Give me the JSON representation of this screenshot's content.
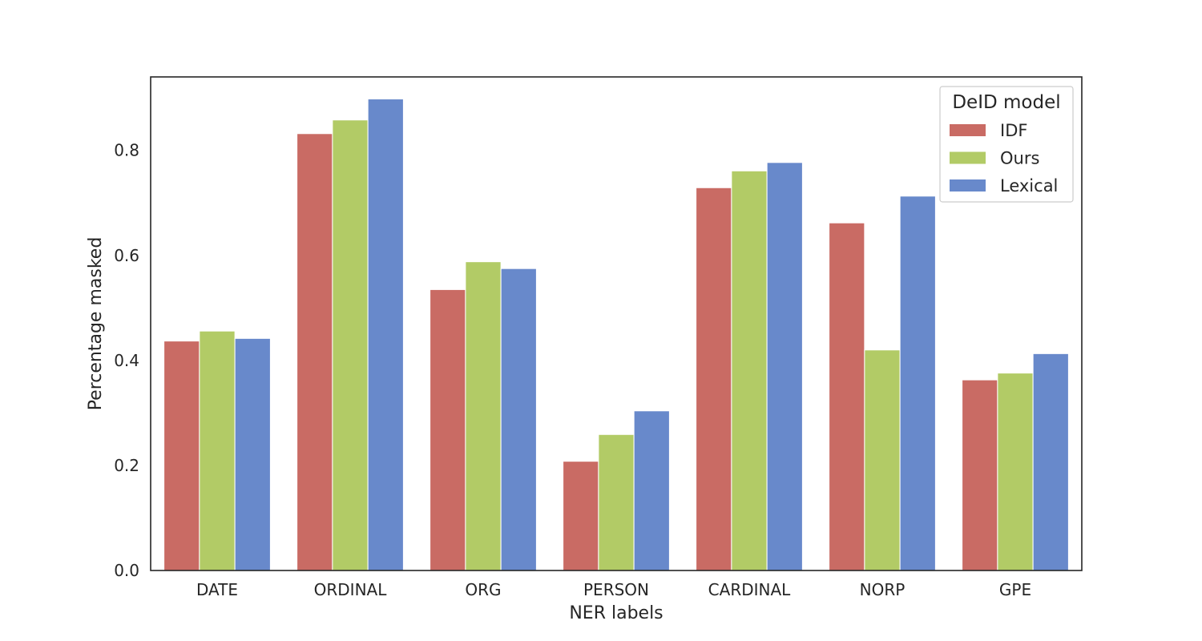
{
  "chart_data": {
    "type": "bar",
    "xlabel": "NER labels",
    "ylabel": "Percentage masked",
    "ylim": [
      0,
      0.94
    ],
    "yticks": [
      "0.0",
      "0.2",
      "0.4",
      "0.6",
      "0.8"
    ],
    "grid": false,
    "legend_placement": "top-right",
    "legend_title": "DeID model",
    "categories": [
      "DATE",
      "ORDINAL",
      "ORG",
      "PERSON",
      "CARDINAL",
      "NORP",
      "GPE"
    ],
    "series": [
      {
        "name": "IDF",
        "color": "#c96b64",
        "values": [
          0.437,
          0.832,
          0.535,
          0.208,
          0.729,
          0.662,
          0.363
        ]
      },
      {
        "name": "Ours",
        "color": "#b2cb66",
        "values": [
          0.456,
          0.858,
          0.588,
          0.259,
          0.761,
          0.42,
          0.376
        ]
      },
      {
        "name": "Lexical",
        "color": "#6889cb",
        "values": [
          0.442,
          0.898,
          0.575,
          0.304,
          0.777,
          0.713,
          0.413
        ]
      }
    ]
  }
}
